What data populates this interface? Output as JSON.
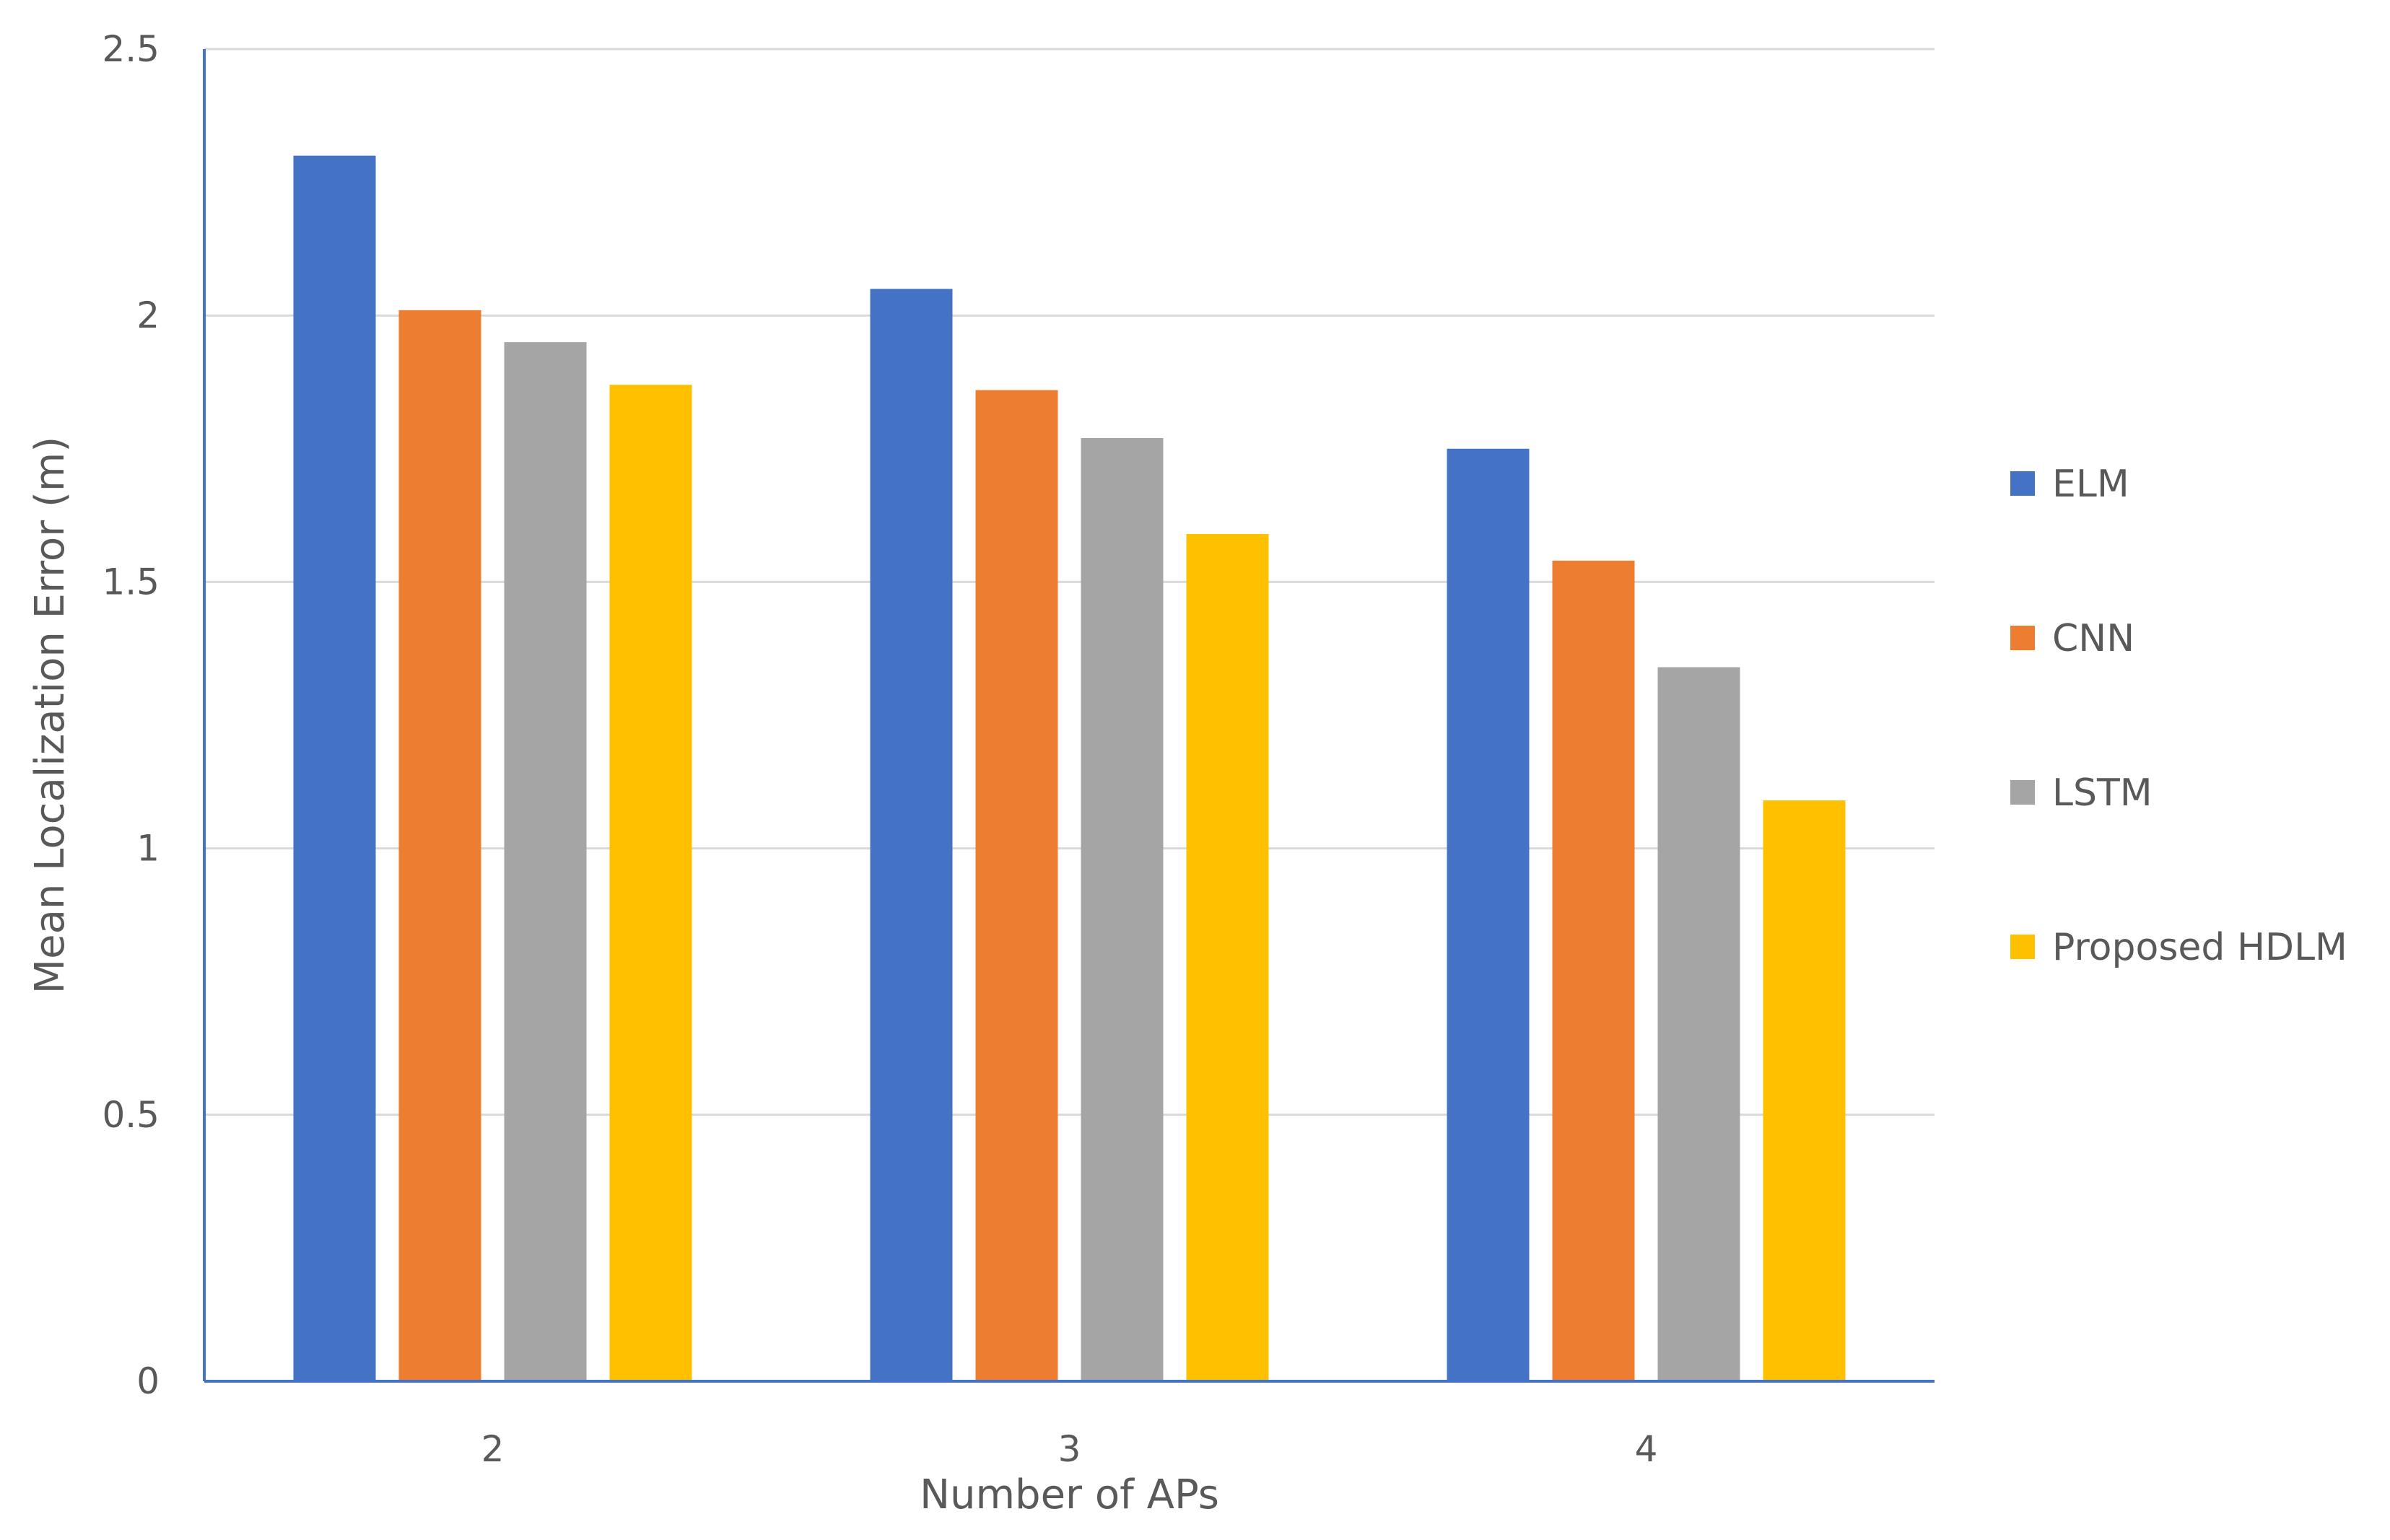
{
  "chart_data": {
    "type": "bar",
    "categories": [
      "2",
      "3",
      "4"
    ],
    "series": [
      {
        "name": "ELM",
        "color": "#4472C4",
        "values": [
          2.3,
          2.05,
          1.75
        ]
      },
      {
        "name": "CNN",
        "color": "#ED7D31",
        "values": [
          2.01,
          1.86,
          1.54
        ]
      },
      {
        "name": "LSTM",
        "color": "#A5A5A5",
        "values": [
          1.95,
          1.77,
          1.34
        ]
      },
      {
        "name": "Proposed HDLM",
        "color": "#FFC000",
        "values": [
          1.87,
          1.59,
          1.09
        ]
      }
    ],
    "title": "",
    "xlabel": "Number of APs",
    "ylabel": "Mean Localization Error (m)",
    "ylim": [
      0,
      2.5
    ],
    "yticks": [
      "0",
      "0.5",
      "1",
      "1.5",
      "2",
      "2.5"
    ],
    "grid": true,
    "legend_position": "right",
    "axis_color": "#4472C4",
    "grid_color": "#D9D9D9"
  }
}
